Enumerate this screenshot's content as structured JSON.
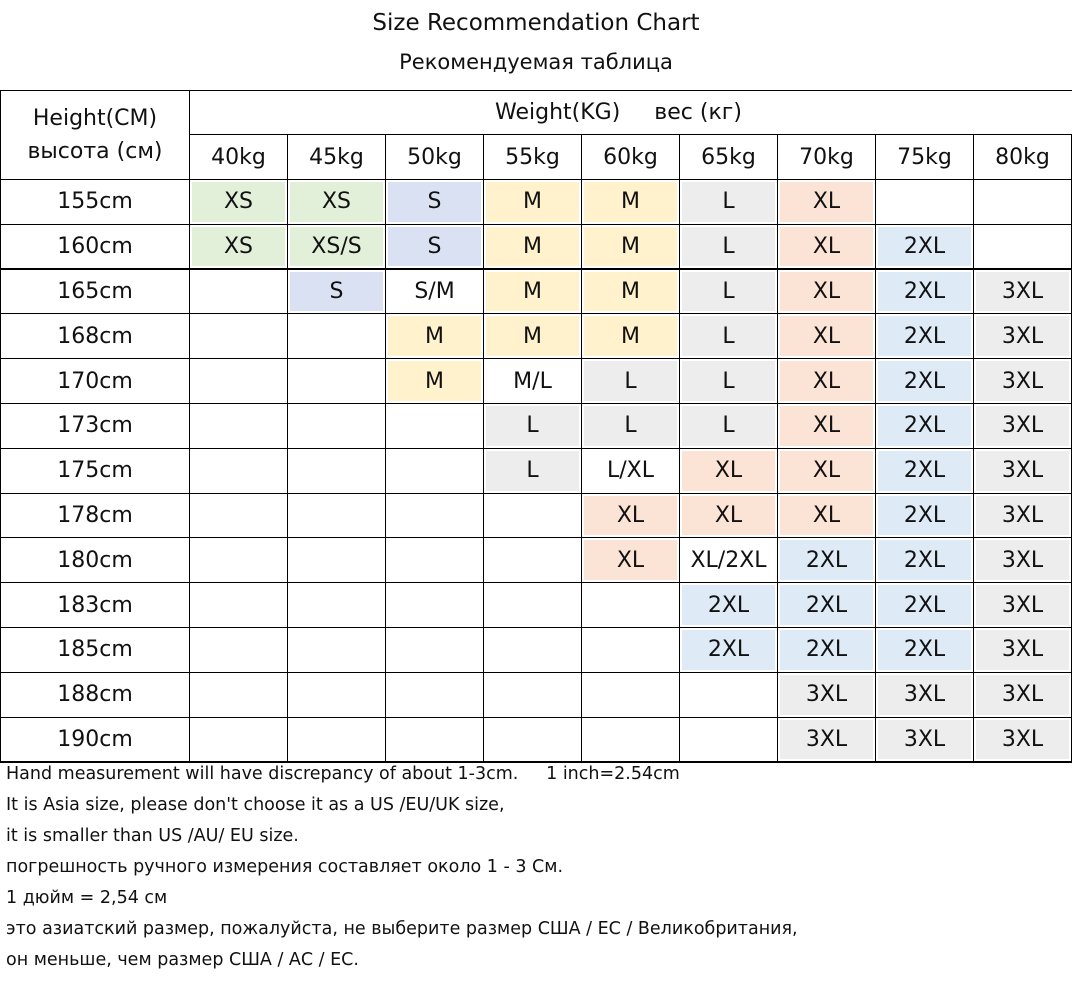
{
  "title": "Size Recommendation Chart",
  "subtitle": "Рекомендуемая таблица",
  "height_header": [
    "Height(CM)",
    "высота (см)"
  ],
  "weight_header": [
    "Weight(KG)",
    "вес (кг)"
  ],
  "columns": [
    "40kg",
    "45kg",
    "50kg",
    "55kg",
    "60kg",
    "65kg",
    "70kg",
    "75kg",
    "80kg"
  ],
  "rows": [
    {
      "height": "155cm",
      "cells": [
        {
          "text": "XS",
          "color": "#e2efd9"
        },
        {
          "text": "XS",
          "color": "#e2efd9"
        },
        {
          "text": "S",
          "color": "#d9e1f2"
        },
        {
          "text": "M",
          "color": "#fff2cc"
        },
        {
          "text": "M",
          "color": "#fff2cc"
        },
        {
          "text": "L",
          "color": "#ededed"
        },
        {
          "text": "XL",
          "color": "#fbe4d5"
        },
        null,
        null
      ]
    },
    {
      "height": "160cm",
      "cells": [
        {
          "text": "XS",
          "color": "#e2efd9"
        },
        {
          "text": "XS/S",
          "color": "#e2efd9"
        },
        {
          "text": "S",
          "color": "#d9e1f2"
        },
        {
          "text": "M",
          "color": "#fff2cc"
        },
        {
          "text": "M",
          "color": "#fff2cc"
        },
        {
          "text": "L",
          "color": "#ededed"
        },
        {
          "text": "XL",
          "color": "#fbe4d5"
        },
        {
          "text": "2XL",
          "color": "#deebf7"
        },
        null
      ]
    },
    {
      "height": "165cm",
      "cells": [
        null,
        {
          "text": "S",
          "color": "#d9e1f2"
        },
        {
          "text": "S/M"
        },
        {
          "text": "M",
          "color": "#fff2cc"
        },
        {
          "text": "M",
          "color": "#fff2cc"
        },
        {
          "text": "L",
          "color": "#ededed"
        },
        {
          "text": "XL",
          "color": "#fbe4d5"
        },
        {
          "text": "2XL",
          "color": "#deebf7"
        },
        {
          "text": "3XL",
          "color": "#ededed"
        }
      ]
    },
    {
      "height": "168cm",
      "cells": [
        null,
        null,
        {
          "text": "M",
          "color": "#fff2cc"
        },
        {
          "text": "M",
          "color": "#fff2cc"
        },
        {
          "text": "M",
          "color": "#fff2cc"
        },
        {
          "text": "L",
          "color": "#ededed"
        },
        {
          "text": "XL",
          "color": "#fbe4d5"
        },
        {
          "text": "2XL",
          "color": "#deebf7"
        },
        {
          "text": "3XL",
          "color": "#ededed"
        }
      ]
    },
    {
      "height": "170cm",
      "cells": [
        null,
        null,
        {
          "text": "M",
          "color": "#fff2cc"
        },
        {
          "text": "M/L"
        },
        {
          "text": "L",
          "color": "#ededed"
        },
        {
          "text": "L",
          "color": "#ededed"
        },
        {
          "text": "XL",
          "color": "#fbe4d5"
        },
        {
          "text": "2XL",
          "color": "#deebf7"
        },
        {
          "text": "3XL",
          "color": "#ededed"
        }
      ]
    },
    {
      "height": "173cm",
      "cells": [
        null,
        null,
        null,
        {
          "text": "L",
          "color": "#ededed"
        },
        {
          "text": "L",
          "color": "#ededed"
        },
        {
          "text": "L",
          "color": "#ededed"
        },
        {
          "text": "XL",
          "color": "#fbe4d5"
        },
        {
          "text": "2XL",
          "color": "#deebf7"
        },
        {
          "text": "3XL",
          "color": "#ededed"
        }
      ]
    },
    {
      "height": "175cm",
      "cells": [
        null,
        null,
        null,
        {
          "text": "L",
          "color": "#ededed"
        },
        {
          "text": "L/XL"
        },
        {
          "text": "XL",
          "color": "#fbe4d5"
        },
        {
          "text": "XL",
          "color": "#fbe4d5"
        },
        {
          "text": "2XL",
          "color": "#deebf7"
        },
        {
          "text": "3XL",
          "color": "#ededed"
        }
      ]
    },
    {
      "height": "178cm",
      "cells": [
        null,
        null,
        null,
        null,
        {
          "text": "XL",
          "color": "#fbe4d5"
        },
        {
          "text": "XL",
          "color": "#fbe4d5"
        },
        {
          "text": "XL",
          "color": "#fbe4d5"
        },
        {
          "text": "2XL",
          "color": "#deebf7"
        },
        {
          "text": "3XL",
          "color": "#ededed"
        }
      ]
    },
    {
      "height": "180cm",
      "cells": [
        null,
        null,
        null,
        null,
        {
          "text": "XL",
          "color": "#fbe4d5"
        },
        {
          "text": "XL/2XL"
        },
        {
          "text": "2XL",
          "color": "#deebf7"
        },
        {
          "text": "2XL",
          "color": "#deebf7"
        },
        {
          "text": "3XL",
          "color": "#ededed"
        }
      ]
    },
    {
      "height": "183cm",
      "cells": [
        null,
        null,
        null,
        null,
        null,
        {
          "text": "2XL",
          "color": "#deebf7"
        },
        {
          "text": "2XL",
          "color": "#deebf7"
        },
        {
          "text": "2XL",
          "color": "#deebf7"
        },
        {
          "text": "3XL",
          "color": "#ededed"
        }
      ]
    },
    {
      "height": "185cm",
      "cells": [
        null,
        null,
        null,
        null,
        null,
        {
          "text": "2XL",
          "color": "#deebf7"
        },
        {
          "text": "2XL",
          "color": "#deebf7"
        },
        {
          "text": "2XL",
          "color": "#deebf7"
        },
        {
          "text": "3XL",
          "color": "#ededed"
        }
      ]
    },
    {
      "height": "188cm",
      "cells": [
        null,
        null,
        null,
        null,
        null,
        null,
        {
          "text": "3XL",
          "color": "#ededed"
        },
        {
          "text": "3XL",
          "color": "#ededed"
        },
        {
          "text": "3XL",
          "color": "#ededed"
        }
      ]
    },
    {
      "height": "190cm",
      "cells": [
        null,
        null,
        null,
        null,
        null,
        null,
        {
          "text": "3XL",
          "color": "#ededed"
        },
        {
          "text": "3XL",
          "color": "#ededed"
        },
        {
          "text": "3XL",
          "color": "#ededed"
        }
      ]
    }
  ],
  "notes": [
    "Hand measurement will have discrepancy of about 1-3cm.     1 inch=2.54cm",
    "It is Asia size, please don't choose it as a US /EU/UK size,",
    "it is smaller than US /AU/ EU size.",
    "погрешность ручного измерения составляет около 1 - 3 См.",
    "1 дюйм = 2,54 см",
    "это азиатский размер, пожалуйста, не выберите размер США / ЕС / Великобритания,",
    "он меньше, чем размер США / АС / ЕС."
  ]
}
